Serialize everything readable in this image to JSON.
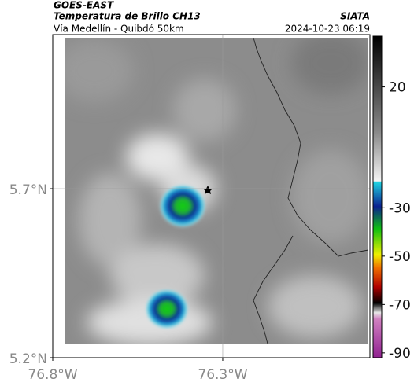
{
  "header": {
    "title": "GOES-EAST",
    "subtitle": "Temperatura de Brillo CH13",
    "route": "Vía Medellín - Quibdó 50km",
    "source": "SIATA",
    "timestamp": "2024-10-23 06:19"
  },
  "map": {
    "xlim": [
      -76.8,
      -75.867
    ],
    "ylim": [
      5.2,
      6.156
    ],
    "xticks": [
      {
        "value": -76.8,
        "label": "76.8°W"
      },
      {
        "value": -76.3,
        "label": "76.3°W"
      }
    ],
    "yticks": [
      {
        "value": 5.2,
        "label": "5.2°N"
      },
      {
        "value": 5.7,
        "label": "5.7°N"
      }
    ],
    "grid": true
  },
  "colorbar": {
    "lim": [
      41,
      -92
    ],
    "ticks": [
      20,
      -30,
      -50,
      -70,
      -90
    ]
  }
}
